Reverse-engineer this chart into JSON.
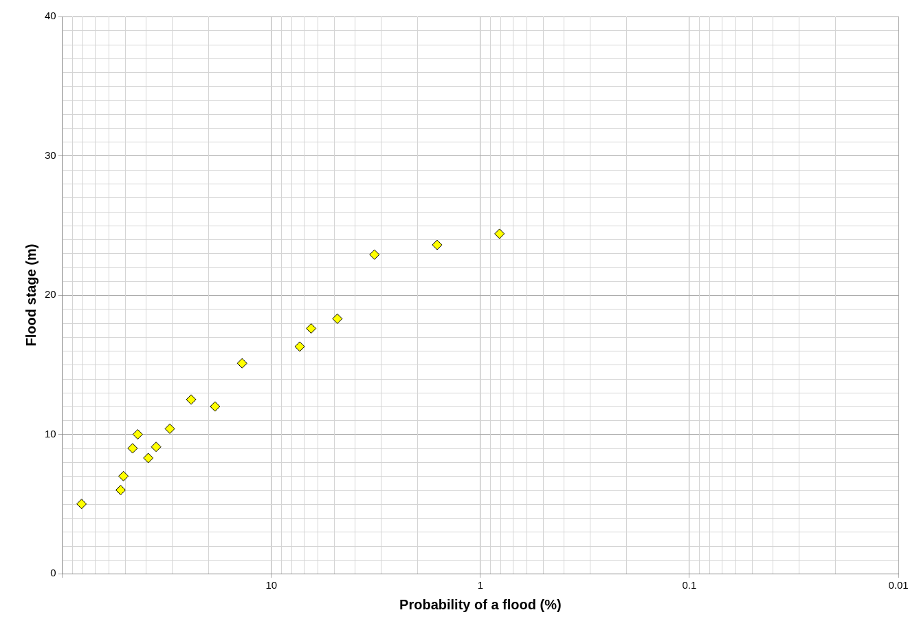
{
  "chart_data": {
    "type": "scatter",
    "xlabel": "Probability of a flood (%)",
    "ylabel": "Flood stage (m)",
    "log": "x",
    "xlim": [
      100,
      0.01
    ],
    "xticks": [
      {
        "value": 100,
        "label": null
      },
      10,
      1,
      0.1,
      0.01
    ],
    "ylim": [
      0,
      40
    ],
    "yticks": [
      0,
      10,
      20,
      30,
      40
    ],
    "grid": true,
    "legend": false,
    "marker": "diamond",
    "series": [
      {
        "color": "#ffff00",
        "x": [
          80.9,
          52.6,
          51.0,
          46.1,
          43.6,
          38.8,
          35.6,
          30.6,
          24.2,
          18.6,
          13.8,
          7.31,
          6.45,
          4.83,
          3.21,
          1.61,
          0.81
        ],
        "values": [
          5.0,
          6.0,
          7.0,
          9.0,
          10.0,
          8.3,
          9.1,
          10.4,
          12.5,
          12.0,
          15.1,
          16.3,
          17.6,
          18.3,
          22.9,
          23.6,
          24.4
        ]
      }
    ]
  }
}
